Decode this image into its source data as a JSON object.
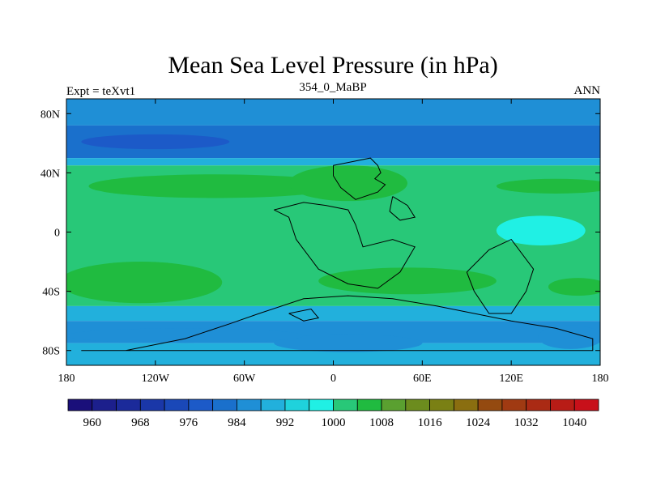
{
  "chart_data": {
    "type": "heatmap",
    "title": "Mean Sea Level Pressure (in hPa)",
    "left_label": "Expt = teXvt1",
    "center_label": "354_0_MaBP",
    "right_label": "ANN",
    "projection": "cylindrical equidistant",
    "xlim": [
      -180,
      180
    ],
    "ylim": [
      -90,
      90
    ],
    "x_ticks": [
      -180,
      -120,
      -60,
      0,
      60,
      120,
      180
    ],
    "x_tick_labels": [
      "180",
      "120W",
      "60W",
      "0",
      "60E",
      "120E",
      "180"
    ],
    "y_ticks": [
      80,
      40,
      0,
      -40,
      -80
    ],
    "y_tick_labels": [
      "80N",
      "40N",
      "0",
      "40S",
      "80S"
    ],
    "colorbar": {
      "levels": [
        956,
        960,
        964,
        968,
        972,
        976,
        980,
        984,
        988,
        992,
        996,
        1000,
        1004,
        1008,
        1012,
        1016,
        1020,
        1024,
        1028,
        1032,
        1036,
        1040,
        1044
      ],
      "colors": [
        "#1a0f7a",
        "#1c1f8c",
        "#1b2a9a",
        "#1a37a8",
        "#1a48b8",
        "#1c5ac8",
        "#1a70cc",
        "#1f8fd6",
        "#22b0dc",
        "#1fd2dc",
        "#20f0e4",
        "#28c878",
        "#20bb40",
        "#5aa030",
        "#6c8c1e",
        "#7a8014",
        "#8a6e10",
        "#944a10",
        "#a03a12",
        "#aa2a14",
        "#b81c16",
        "#c8101a"
      ],
      "labels": [
        "960",
        "968",
        "976",
        "984",
        "992",
        "1000",
        "1008",
        "1016",
        "1024",
        "1032",
        "1040"
      ]
    },
    "field_bands": [
      {
        "lat_range": [
          72,
          90
        ],
        "value": 987
      },
      {
        "lat_range": [
          50,
          72
        ],
        "value": 983
      },
      {
        "lat_range": [
          45,
          50
        ],
        "value": 990
      },
      {
        "lat_range": [
          -50,
          45
        ],
        "value": 1002
      },
      {
        "lat_range": [
          -60,
          -50
        ],
        "value": 990
      },
      {
        "lat_range": [
          -75,
          -60
        ],
        "value": 986
      },
      {
        "lat_range": [
          -90,
          -75
        ],
        "value": 991
      }
    ],
    "field_features": [
      {
        "kind": "low",
        "lon": -120,
        "lat": 61,
        "lon_half_width": 50,
        "lat_half_width": 5,
        "value": 978
      },
      {
        "kind": "high",
        "lon": -80,
        "lat": 31,
        "lon_half_width": 85,
        "lat_half_width": 8,
        "value": 1006
      },
      {
        "kind": "high",
        "lon": 10,
        "lat": 33,
        "lon_half_width": 40,
        "lat_half_width": 12,
        "value": 1006
      },
      {
        "kind": "high",
        "lon": 150,
        "lat": 31,
        "lon_half_width": 40,
        "lat_half_width": 5,
        "value": 1006
      },
      {
        "kind": "low",
        "lon": 140,
        "lat": 1,
        "lon_half_width": 30,
        "lat_half_width": 10,
        "value": 996
      },
      {
        "kind": "high",
        "lon": -130,
        "lat": -34,
        "lon_half_width": 55,
        "lat_half_width": 14,
        "value": 1006
      },
      {
        "kind": "high",
        "lon": 50,
        "lat": -33,
        "lon_half_width": 60,
        "lat_half_width": 9,
        "value": 1006
      },
      {
        "kind": "high",
        "lon": 165,
        "lat": -37,
        "lon_half_width": 20,
        "lat_half_width": 6,
        "value": 1006
      },
      {
        "kind": "low",
        "lon": 10,
        "lat": -75,
        "lon_half_width": 50,
        "lat_half_width": 6,
        "value": 985
      },
      {
        "kind": "low",
        "lon": -100,
        "lat": -70,
        "lon_half_width": 80,
        "lat_half_width": 5,
        "value": 984
      },
      {
        "kind": "low",
        "lon": 160,
        "lat": -71,
        "lon_half_width": 22,
        "lat_half_width": 8,
        "value": 984
      }
    ],
    "coastlines": [
      {
        "name": "northern continent",
        "points": [
          [
            0,
            45
          ],
          [
            10,
            47
          ],
          [
            25,
            50
          ],
          [
            30,
            45
          ],
          [
            32,
            40
          ],
          [
            28,
            36
          ],
          [
            35,
            32
          ],
          [
            30,
            27
          ],
          [
            15,
            22
          ],
          [
            5,
            30
          ],
          [
            0,
            38
          ],
          [
            0,
            45
          ]
        ]
      },
      {
        "name": "central continent",
        "points": [
          [
            -40,
            15
          ],
          [
            -30,
            10
          ],
          [
            -25,
            -5
          ],
          [
            -10,
            -25
          ],
          [
            10,
            -35
          ],
          [
            30,
            -38
          ],
          [
            45,
            -27
          ],
          [
            55,
            -10
          ],
          [
            40,
            -5
          ],
          [
            20,
            -10
          ],
          [
            15,
            5
          ],
          [
            10,
            15
          ],
          [
            -5,
            18
          ],
          [
            -20,
            20
          ],
          [
            -40,
            15
          ]
        ]
      },
      {
        "name": "eastern continent",
        "points": [
          [
            90,
            -27
          ],
          [
            105,
            -12
          ],
          [
            120,
            -5
          ],
          [
            135,
            -25
          ],
          [
            130,
            -40
          ],
          [
            120,
            -55
          ],
          [
            105,
            -55
          ],
          [
            95,
            -40
          ],
          [
            90,
            -27
          ]
        ]
      },
      {
        "name": "southern polar continent",
        "points": [
          [
            -170,
            -80
          ],
          [
            -140,
            -80
          ],
          [
            -100,
            -72
          ],
          [
            -70,
            -62
          ],
          [
            -50,
            -55
          ],
          [
            -20,
            -45
          ],
          [
            10,
            -43
          ],
          [
            40,
            -45
          ],
          [
            70,
            -50
          ],
          [
            95,
            -55
          ],
          [
            120,
            -60
          ],
          [
            150,
            -65
          ],
          [
            175,
            -72
          ],
          [
            175,
            -80
          ],
          [
            100,
            -80
          ],
          [
            0,
            -80
          ],
          [
            -100,
            -80
          ],
          [
            -170,
            -80
          ]
        ]
      },
      {
        "name": "eastern island",
        "points": [
          [
            40,
            24
          ],
          [
            50,
            18
          ],
          [
            55,
            10
          ],
          [
            45,
            8
          ],
          [
            38,
            14
          ],
          [
            40,
            24
          ]
        ]
      },
      {
        "name": "southern island",
        "points": [
          [
            -30,
            -55
          ],
          [
            -20,
            -60
          ],
          [
            -10,
            -58
          ],
          [
            -15,
            -52
          ],
          [
            -30,
            -55
          ]
        ]
      }
    ]
  }
}
